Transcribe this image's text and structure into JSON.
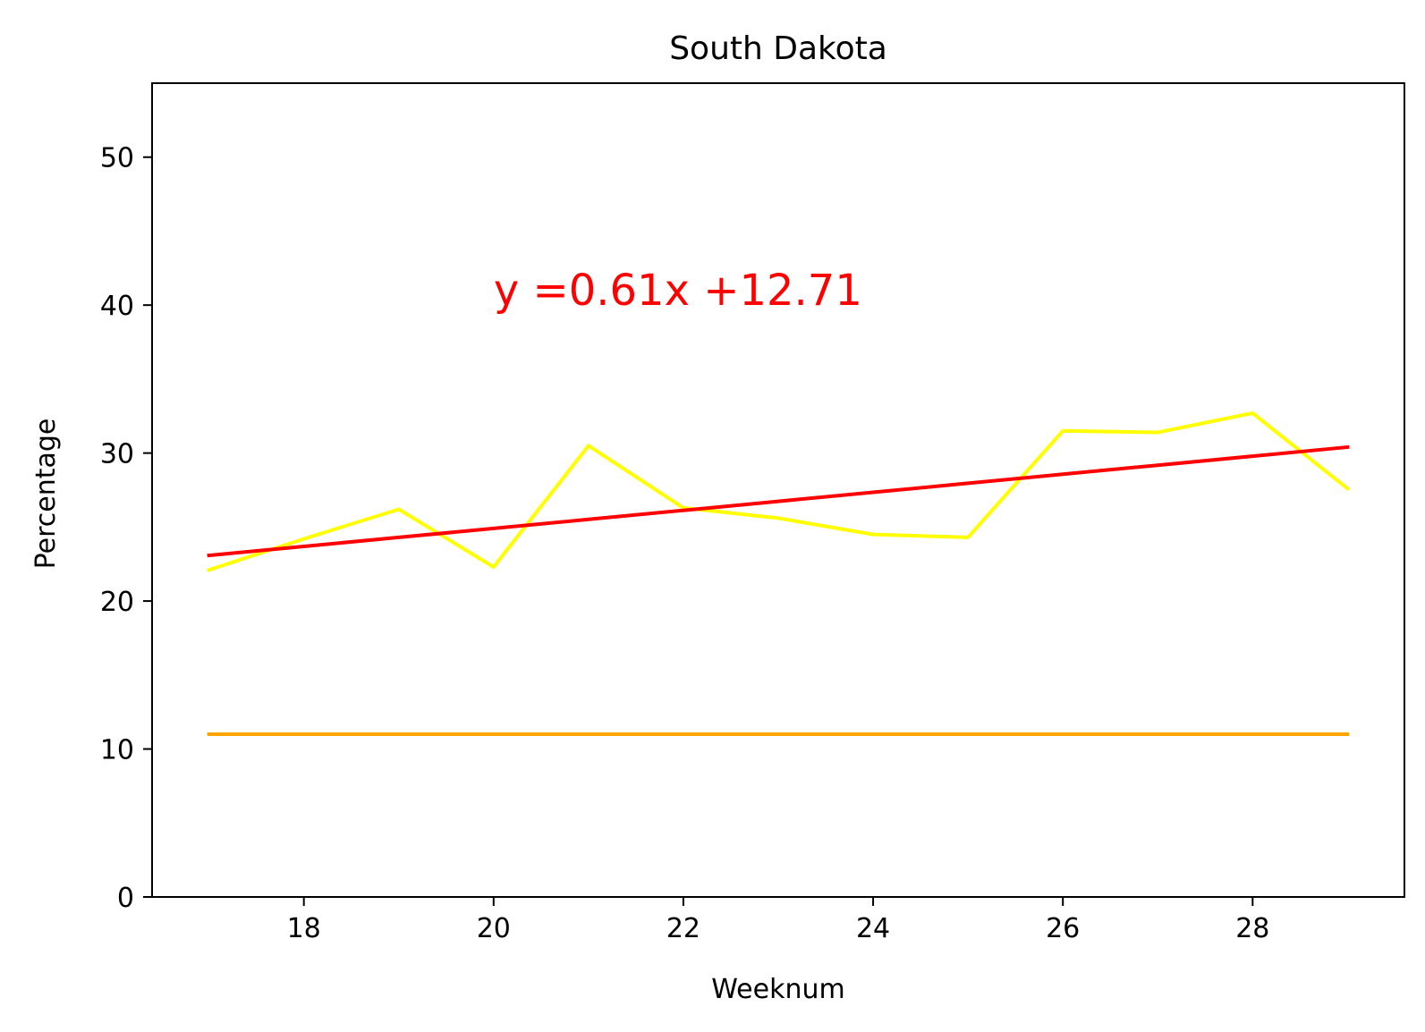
{
  "chart_data": {
    "type": "line",
    "title": "South Dakota",
    "xlabel": "Weeknum",
    "ylabel": "Percentage",
    "xlim": [
      16.4,
      29.6
    ],
    "ylim": [
      0,
      55
    ],
    "xticks": [
      18,
      20,
      22,
      24,
      26,
      28
    ],
    "yticks": [
      0,
      10,
      20,
      30,
      40,
      50
    ],
    "grid": false,
    "x": [
      17,
      18,
      19,
      20,
      21,
      22,
      23,
      24,
      25,
      26,
      27,
      28,
      29
    ],
    "series": [
      {
        "color": "#ffff00",
        "values": [
          22.1,
          24.2,
          26.2,
          22.3,
          30.5,
          26.3,
          25.6,
          24.5,
          24.3,
          31.5,
          31.4,
          32.7,
          27.6
        ]
      },
      {
        "color": "#ff0000",
        "values": [
          23.08,
          23.69,
          24.3,
          24.91,
          25.52,
          26.13,
          26.74,
          27.35,
          27.96,
          28.57,
          29.18,
          29.79,
          30.4
        ]
      },
      {
        "color": "#ffa500",
        "values": [
          11,
          11,
          11,
          11,
          11,
          11,
          11,
          11,
          11,
          11,
          11,
          11,
          11
        ]
      }
    ],
    "annotations": [
      {
        "text": "y =0.61x +12.71",
        "x": 20,
        "y": 40,
        "color": "#ff0000"
      }
    ]
  }
}
